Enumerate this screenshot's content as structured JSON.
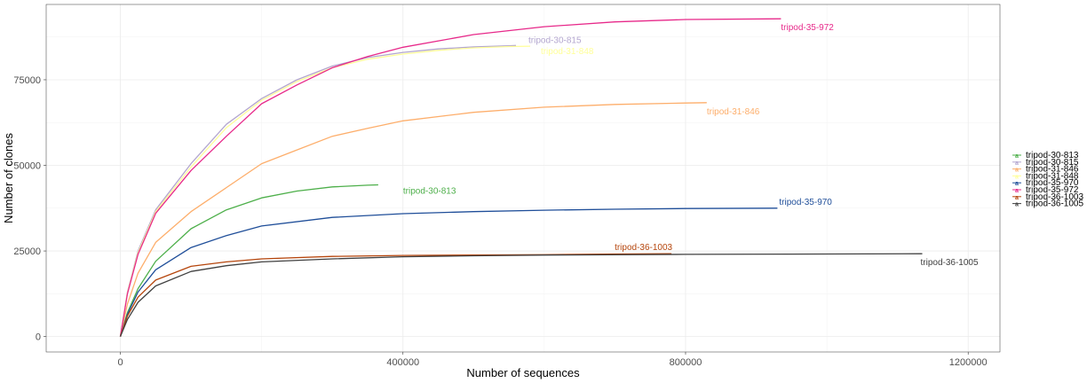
{
  "chart_data": {
    "type": "line",
    "title": "",
    "xlabel": "Number of sequences",
    "ylabel": "Number of clones",
    "xlim": [
      -105000,
      1245000
    ],
    "ylim": [
      -4500,
      97000
    ],
    "x_ticks": [
      0,
      400000,
      800000,
      1200000
    ],
    "x_tick_labels": [
      "0",
      "400000",
      "800000",
      "1200000"
    ],
    "y_ticks": [
      0,
      25000,
      50000,
      75000
    ],
    "y_tick_labels": [
      "0",
      "25000",
      "50000",
      "75000"
    ],
    "grid": true,
    "legend_position": "right",
    "series": [
      {
        "name": "tripod-30-813",
        "color": "#4daf4a",
        "label": "tripod-30-813",
        "points": [
          [
            0,
            0
          ],
          [
            10000,
            7000
          ],
          [
            25000,
            14000
          ],
          [
            50000,
            22000
          ],
          [
            100000,
            31500
          ],
          [
            150000,
            37000
          ],
          [
            200000,
            40500
          ],
          [
            250000,
            42500
          ],
          [
            300000,
            43700
          ],
          [
            350000,
            44200
          ],
          [
            365000,
            44300
          ]
        ]
      },
      {
        "name": "tripod-30-815",
        "color": "#b3a6cf",
        "label": "tripod-30-815",
        "points": [
          [
            0,
            0
          ],
          [
            10000,
            13000
          ],
          [
            25000,
            25000
          ],
          [
            50000,
            37000
          ],
          [
            100000,
            50500
          ],
          [
            150000,
            62000
          ],
          [
            200000,
            69500
          ],
          [
            250000,
            75000
          ],
          [
            300000,
            79000
          ],
          [
            350000,
            81500
          ],
          [
            400000,
            83000
          ],
          [
            450000,
            84000
          ],
          [
            500000,
            84600
          ],
          [
            550000,
            84900
          ],
          [
            560000,
            85000
          ]
        ]
      },
      {
        "name": "tripod-31-846",
        "color": "#fdae6b",
        "label": "tripod-31-846",
        "points": [
          [
            0,
            0
          ],
          [
            10000,
            9500
          ],
          [
            25000,
            18500
          ],
          [
            50000,
            27500
          ],
          [
            100000,
            36500
          ],
          [
            150000,
            43500
          ],
          [
            200000,
            50500
          ],
          [
            250000,
            54500
          ],
          [
            300000,
            58500
          ],
          [
            350000,
            60800
          ],
          [
            400000,
            63000
          ],
          [
            500000,
            65500
          ],
          [
            600000,
            67000
          ],
          [
            700000,
            67800
          ],
          [
            800000,
            68200
          ],
          [
            830000,
            68300
          ]
        ]
      },
      {
        "name": "tripod-31-848",
        "color": "#ffff99",
        "label": "tripod-31-848",
        "points": [
          [
            0,
            0
          ],
          [
            10000,
            12800
          ],
          [
            25000,
            24500
          ],
          [
            50000,
            36500
          ],
          [
            100000,
            49500
          ],
          [
            150000,
            61000
          ],
          [
            200000,
            69000
          ],
          [
            250000,
            74500
          ],
          [
            300000,
            78500
          ],
          [
            350000,
            81000
          ],
          [
            400000,
            82500
          ],
          [
            450000,
            83600
          ],
          [
            500000,
            84300
          ],
          [
            550000,
            84700
          ],
          [
            580000,
            84800
          ]
        ]
      },
      {
        "name": "tripod-35-970",
        "color": "#1f4e99",
        "label": "tripod-35-970",
        "points": [
          [
            0,
            0
          ],
          [
            10000,
            6500
          ],
          [
            25000,
            13000
          ],
          [
            50000,
            19500
          ],
          [
            100000,
            26000
          ],
          [
            150000,
            29500
          ],
          [
            200000,
            32300
          ],
          [
            300000,
            34800
          ],
          [
            400000,
            35900
          ],
          [
            500000,
            36500
          ],
          [
            600000,
            36900
          ],
          [
            700000,
            37200
          ],
          [
            800000,
            37400
          ],
          [
            930000,
            37500
          ]
        ]
      },
      {
        "name": "tripod-35-972",
        "color": "#e7298a",
        "label": "tripod-35-972",
        "points": [
          [
            0,
            0
          ],
          [
            10000,
            12500
          ],
          [
            25000,
            24000
          ],
          [
            50000,
            36000
          ],
          [
            100000,
            48500
          ],
          [
            150000,
            58500
          ],
          [
            200000,
            68000
          ],
          [
            250000,
            73500
          ],
          [
            300000,
            78500
          ],
          [
            350000,
            81800
          ],
          [
            400000,
            84500
          ],
          [
            500000,
            88200
          ],
          [
            600000,
            90500
          ],
          [
            700000,
            91900
          ],
          [
            800000,
            92600
          ],
          [
            935000,
            92800
          ]
        ]
      },
      {
        "name": "tripod-36-1003",
        "color": "#b5450c",
        "label": "tripod-36-1003",
        "points": [
          [
            0,
            0
          ],
          [
            10000,
            6000
          ],
          [
            25000,
            11500
          ],
          [
            50000,
            16500
          ],
          [
            100000,
            20500
          ],
          [
            150000,
            21800
          ],
          [
            200000,
            22700
          ],
          [
            300000,
            23400
          ],
          [
            400000,
            23700
          ],
          [
            500000,
            23800
          ],
          [
            600000,
            23900
          ],
          [
            700000,
            24100
          ],
          [
            780000,
            24200
          ]
        ]
      },
      {
        "name": "tripod-36-1005",
        "color": "#404040",
        "label": "tripod-36-1005",
        "points": [
          [
            0,
            0
          ],
          [
            10000,
            5000
          ],
          [
            25000,
            10000
          ],
          [
            50000,
            14800
          ],
          [
            100000,
            19000
          ],
          [
            150000,
            20700
          ],
          [
            200000,
            21800
          ],
          [
            300000,
            22700
          ],
          [
            400000,
            23300
          ],
          [
            500000,
            23600
          ],
          [
            600000,
            23800
          ],
          [
            800000,
            24000
          ],
          [
            1000000,
            24100
          ],
          [
            1135000,
            24200
          ]
        ]
      }
    ]
  }
}
